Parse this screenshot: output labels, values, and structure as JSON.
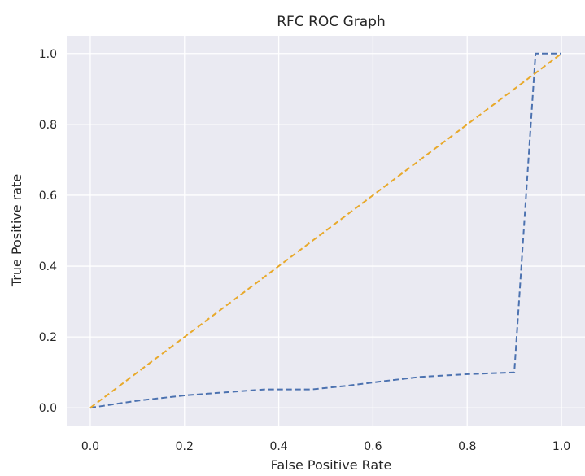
{
  "chart_data": {
    "type": "line",
    "title": "RFC ROC Graph",
    "xlabel": "False Positive Rate",
    "ylabel": "True Positive rate",
    "xlim": [
      -0.05,
      1.05
    ],
    "ylim": [
      -0.05,
      1.05
    ],
    "xticks": [
      "0.0",
      "0.2",
      "0.4",
      "0.6",
      "0.8",
      "1.0"
    ],
    "yticks": [
      "0.0",
      "0.2",
      "0.4",
      "0.6",
      "0.8",
      "1.0"
    ],
    "grid": true,
    "legend": "none",
    "colors": {
      "background": "#eaeaf2",
      "grid": "#ffffff",
      "roc": "#4c72b0",
      "diagonal": "#e8a92b"
    },
    "series": [
      {
        "style": "dashed",
        "color": "#4c72b0",
        "x": [
          0.0,
          0.1,
          0.2,
          0.3,
          0.37,
          0.47,
          0.55,
          0.62,
          0.7,
          0.8,
          0.9,
          0.945,
          1.0
        ],
        "y": [
          0.0,
          0.02,
          0.035,
          0.045,
          0.052,
          0.052,
          0.063,
          0.075,
          0.087,
          0.095,
          0.1,
          1.0,
          1.0
        ]
      },
      {
        "style": "dashed",
        "color": "#e8a92b",
        "x": [
          0.0,
          1.0
        ],
        "y": [
          0.0,
          1.0
        ]
      }
    ]
  }
}
